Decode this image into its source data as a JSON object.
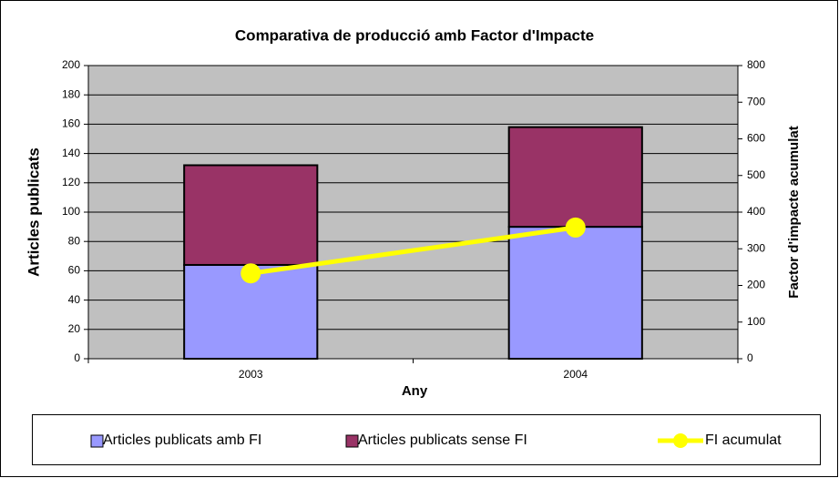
{
  "chart_data": {
    "type": "bar",
    "stacked": true,
    "title": "Comparativa de producció amb Factor d'Impacte",
    "x_label": "Any",
    "y_label": "Articles publicats",
    "y2_label": "Factor d'impacte acumulat",
    "categories": [
      "2003",
      "2004"
    ],
    "series": [
      {
        "name": "Articles publicats amb FI",
        "color": "#9999ff",
        "values": [
          64,
          90
        ]
      },
      {
        "name": "Articles publicats sense FI",
        "color": "#993366",
        "values": [
          68,
          68
        ]
      },
      {
        "name": "FI acumulat",
        "color": "#ffff00",
        "type": "line",
        "axis": "y2",
        "values": [
          233,
          358
        ]
      }
    ],
    "ylim": [
      0,
      200
    ],
    "yticks": [
      0,
      20,
      40,
      60,
      80,
      100,
      120,
      140,
      160,
      180,
      200
    ],
    "y2lim": [
      0,
      800
    ],
    "y2ticks": [
      0,
      100,
      200,
      300,
      400,
      500,
      600,
      700,
      800
    ],
    "grid": true,
    "legend": "bottom",
    "plot_background": "#c0c0c0"
  }
}
